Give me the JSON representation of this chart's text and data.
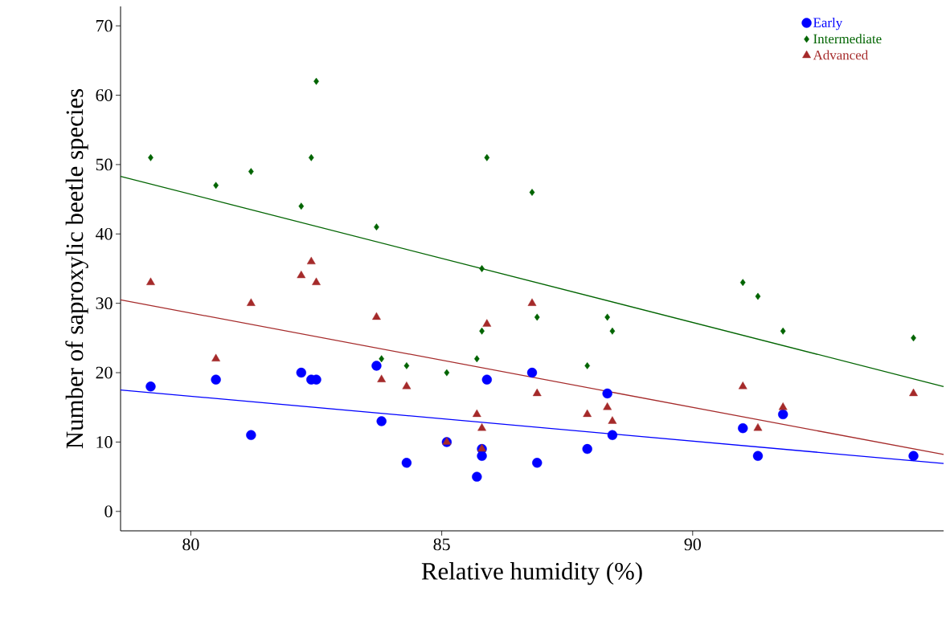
{
  "chart_data": {
    "type": "scatter",
    "xlabel": "Relative humidity (%)",
    "ylabel": "Number of saproxylic beetle species",
    "xlim": [
      78.6,
      95.0
    ],
    "ylim": [
      -2.8,
      72.8
    ],
    "xticks": [
      80,
      85,
      90
    ],
    "yticks": [
      0,
      10,
      20,
      30,
      40,
      50,
      60,
      70
    ],
    "grid": false,
    "legend": "top right",
    "series": [
      {
        "name": "Early",
        "color": "#0000ff",
        "marker": "circle",
        "x": [
          79.2,
          80.5,
          81.2,
          82.2,
          82.4,
          82.5,
          83.7,
          83.8,
          84.3,
          85.1,
          85.7,
          85.8,
          85.8,
          85.9,
          86.8,
          86.9,
          87.9,
          88.3,
          88.4,
          91.0,
          91.3,
          91.8,
          94.4
        ],
        "values": [
          18,
          19,
          11,
          20,
          19,
          19,
          21,
          13,
          7,
          10,
          5,
          9,
          8,
          19,
          20,
          7,
          9,
          17,
          11,
          12,
          8,
          14,
          8
        ]
      },
      {
        "name": "Intermediate",
        "color": "#006400",
        "marker": "diamond",
        "x": [
          79.2,
          80.5,
          81.2,
          82.2,
          82.4,
          82.5,
          83.7,
          83.8,
          84.3,
          85.1,
          85.7,
          85.8,
          85.8,
          85.9,
          86.8,
          86.9,
          87.9,
          88.3,
          88.4,
          91.0,
          91.3,
          91.8,
          94.4
        ],
        "values": [
          51,
          47,
          49,
          44,
          51,
          62,
          41,
          22,
          21,
          20,
          22,
          35,
          26,
          51,
          46,
          28,
          21,
          28,
          26,
          33,
          31,
          26,
          25
        ]
      },
      {
        "name": "Advanced",
        "color": "#a52a2a",
        "marker": "triangle",
        "x": [
          79.2,
          80.5,
          81.2,
          82.2,
          82.4,
          82.5,
          83.7,
          83.8,
          84.3,
          85.1,
          85.7,
          85.8,
          85.8,
          85.9,
          86.8,
          86.9,
          87.9,
          88.3,
          88.4,
          91.0,
          91.3,
          91.8,
          94.4
        ],
        "values": [
          33,
          22,
          30,
          34,
          36,
          33,
          28,
          19,
          18,
          10,
          14,
          12,
          9,
          27,
          30,
          17,
          14,
          15,
          13,
          18,
          12,
          15,
          17
        ]
      },
      {
        "type": "line",
        "color": "#0000ff",
        "marker": "none",
        "x": [
          78.6,
          95.0
        ],
        "values": [
          17.5,
          6.9
        ]
      },
      {
        "type": "line",
        "color": "#006400",
        "marker": "none",
        "x": [
          78.6,
          95.0
        ],
        "values": [
          48.3,
          18.0
        ]
      },
      {
        "type": "line",
        "color": "#a52a2a",
        "marker": "none",
        "x": [
          78.6,
          95.0
        ],
        "values": [
          30.5,
          8.2
        ]
      }
    ]
  }
}
